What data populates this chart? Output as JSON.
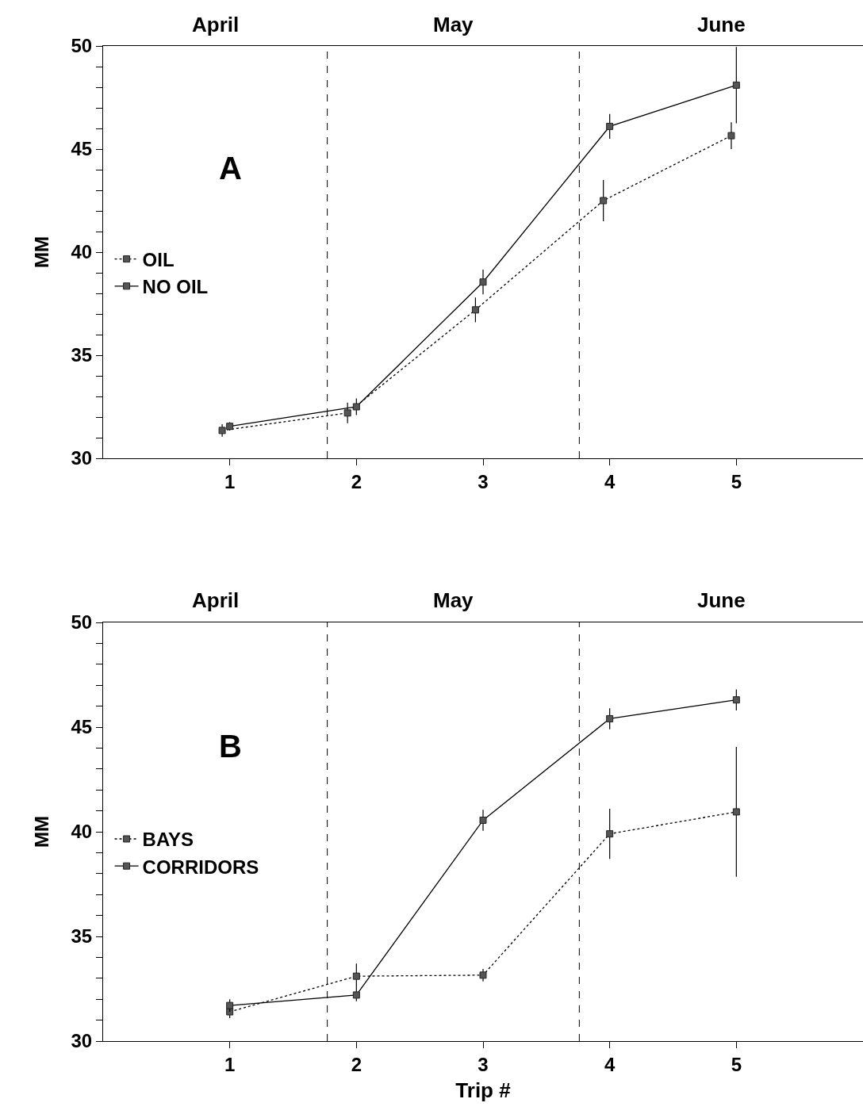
{
  "chart_data": [
    {
      "type": "line",
      "ylabel": "MM",
      "xlim": [
        0,
        6
      ],
      "xticks": [
        1,
        2,
        3,
        4,
        5
      ],
      "ylim": [
        30,
        50
      ],
      "yticks": [
        30,
        {
          "value": 31,
          "label": null
        },
        {
          "value": 32,
          "label": null
        },
        {
          "value": 33,
          "label": null
        },
        {
          "value": 34,
          "label": null
        },
        35,
        {
          "value": 36,
          "label": null
        },
        {
          "value": 37,
          "label": null
        },
        {
          "value": 38,
          "label": null
        },
        {
          "value": 39,
          "label": null
        },
        40,
        {
          "value": 41,
          "label": null
        },
        {
          "value": 42,
          "label": null
        },
        {
          "value": 43,
          "label": null
        },
        {
          "value": 44,
          "label": null
        },
        45,
        {
          "value": 46,
          "label": null
        },
        {
          "value": 47,
          "label": null
        },
        {
          "value": 48,
          "label": null
        },
        {
          "value": 49,
          "label": null
        },
        50
      ],
      "grid": false,
      "legend": "left",
      "marker": "square",
      "annotations": [
        "A",
        "April",
        "May",
        "June"
      ],
      "ref_lines": [
        {
          "axis": "x",
          "value": 1.77,
          "line_style": "dashed",
          "color": "#000000"
        },
        {
          "axis": "x",
          "value": 3.76,
          "line_style": "dashed",
          "color": "#000000"
        }
      ],
      "series": [
        {
          "name": "OIL",
          "color": "#000000",
          "line_style": "dotted",
          "x": [
            0.94,
            1.93,
            2.94,
            3.95,
            4.96
          ],
          "values": [
            31.35,
            32.2,
            37.2,
            42.5,
            45.65
          ],
          "errors": [
            0.3,
            0.5,
            0.6,
            1.0,
            0.65
          ]
        },
        {
          "name": "NO OIL",
          "color": "#000000",
          "line_style": "solid",
          "x": [
            1,
            2,
            3,
            4,
            5
          ],
          "values": [
            31.55,
            32.5,
            38.55,
            46.1,
            48.1
          ],
          "errors": [
            0.2,
            0.4,
            0.6,
            0.6,
            1.85
          ]
        }
      ]
    },
    {
      "type": "line",
      "ylabel": "MM",
      "xlabel": "Trip #",
      "xlim": [
        0,
        6
      ],
      "xticks": [
        1,
        2,
        3,
        4,
        5
      ],
      "ylim": [
        30,
        50
      ],
      "yticks": [
        30,
        {
          "value": 31,
          "label": null
        },
        {
          "value": 32,
          "label": null
        },
        {
          "value": 33,
          "label": null
        },
        {
          "value": 34,
          "label": null
        },
        35,
        {
          "value": 36,
          "label": null
        },
        {
          "value": 37,
          "label": null
        },
        {
          "value": 38,
          "label": null
        },
        {
          "value": 39,
          "label": null
        },
        40,
        {
          "value": 41,
          "label": null
        },
        {
          "value": 42,
          "label": null
        },
        {
          "value": 43,
          "label": null
        },
        {
          "value": 44,
          "label": null
        },
        45,
        {
          "value": 46,
          "label": null
        },
        {
          "value": 47,
          "label": null
        },
        {
          "value": 48,
          "label": null
        },
        {
          "value": 49,
          "label": null
        },
        50
      ],
      "grid": false,
      "legend": "left",
      "marker": "square",
      "annotations": [
        "B",
        "April",
        "May",
        "June"
      ],
      "ref_lines": [
        {
          "axis": "x",
          "value": 1.77,
          "line_style": "dashed",
          "color": "#000000"
        },
        {
          "axis": "x",
          "value": 3.76,
          "line_style": "dashed",
          "color": "#000000"
        }
      ],
      "series": [
        {
          "name": "BAYS",
          "color": "#000000",
          "line_style": "dotted",
          "x": [
            1,
            2,
            3,
            4,
            5
          ],
          "values": [
            31.4,
            33.1,
            33.15,
            39.9,
            40.95
          ],
          "errors": [
            0.3,
            0.6,
            0.3,
            1.2,
            3.1
          ]
        },
        {
          "name": "CORRIDORS",
          "color": "#000000",
          "line_style": "solid",
          "x": [
            1,
            2,
            3,
            4,
            5
          ],
          "values": [
            31.7,
            32.2,
            40.55,
            45.4,
            46.3
          ],
          "errors": [
            0.3,
            0.3,
            0.5,
            0.5,
            0.5
          ]
        }
      ]
    }
  ]
}
